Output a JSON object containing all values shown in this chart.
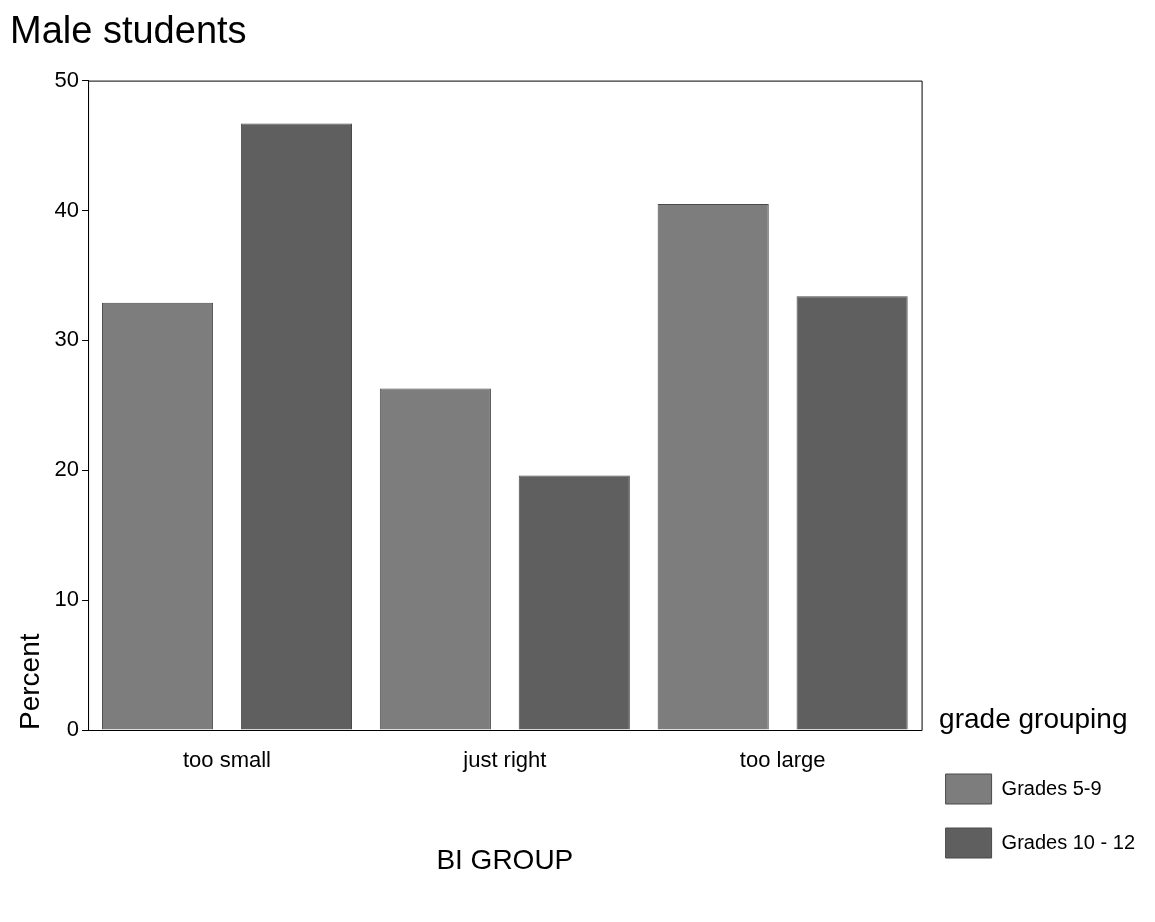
{
  "chart_data": {
    "type": "bar",
    "title": "Male students",
    "xlabel": "BI GROUP",
    "ylabel": "Percent",
    "legend_title": "grade grouping",
    "categories": [
      "too small",
      "just right",
      "too large"
    ],
    "series": [
      {
        "name": "Grades 5-9",
        "color": "#7d7d7d",
        "values": [
          32.9,
          26.3,
          40.5
        ]
      },
      {
        "name": "Grades 10 - 12",
        "color": "#5f5f5f",
        "values": [
          46.7,
          19.6,
          33.4
        ]
      }
    ],
    "ylim": [
      0,
      50
    ],
    "yticks": [
      0,
      10,
      20,
      30,
      40,
      50
    ],
    "grid": false,
    "legend": "right"
  }
}
